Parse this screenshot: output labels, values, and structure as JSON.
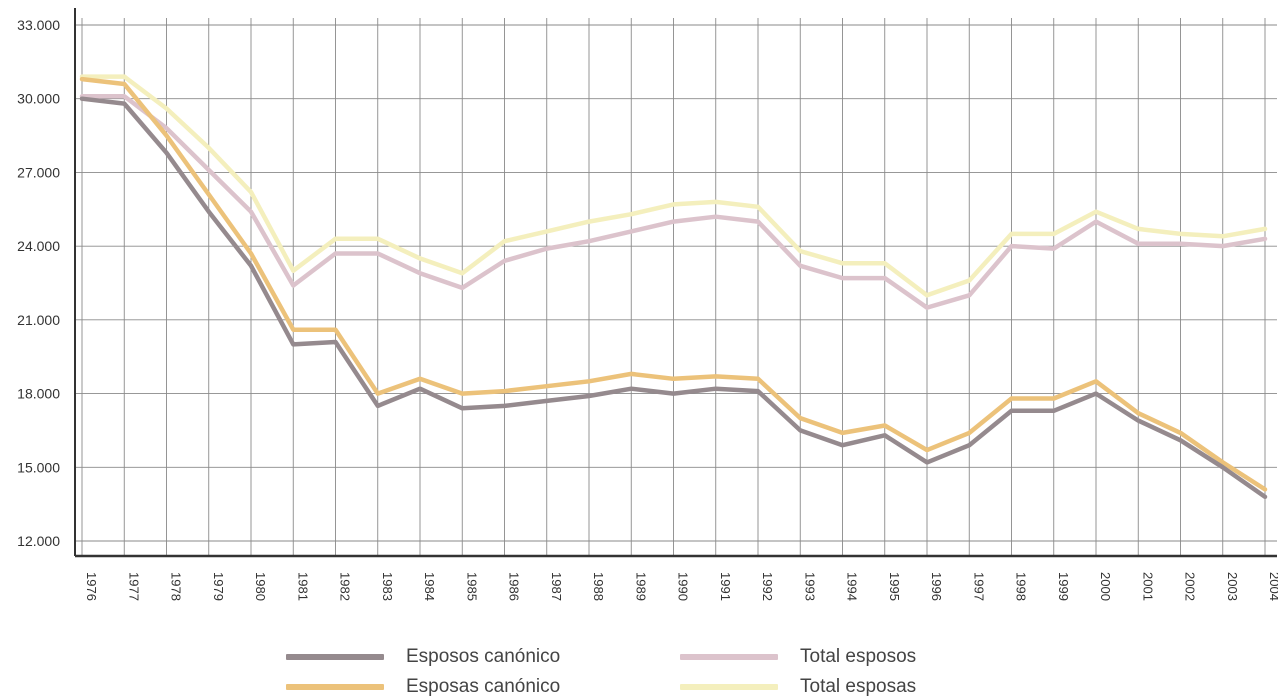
{
  "chart_data": {
    "type": "line",
    "title": "",
    "xlabel": "",
    "ylabel": "",
    "ylim": [
      12000,
      33000
    ],
    "yticks": [
      12000,
      15000,
      18000,
      21000,
      24000,
      27000,
      30000,
      33000
    ],
    "ytick_labels": [
      "12.000",
      "15.000",
      "18.000",
      "21.000",
      "24.000",
      "27.000",
      "30.000",
      "33.000"
    ],
    "grid": true,
    "legend_position": "bottom",
    "x": [
      "1976",
      "1977",
      "1978",
      "1979",
      "1980",
      "1981",
      "1982",
      "1983",
      "1984",
      "1985",
      "1986",
      "1987",
      "1988",
      "1989",
      "1990",
      "1991",
      "1992",
      "1993",
      "1994",
      "1995",
      "1996",
      "1997",
      "1998",
      "1999",
      "2000",
      "2001",
      "2002",
      "2003",
      "2004"
    ],
    "series": [
      {
        "name": "Esposos canónico",
        "color": "#958a8e",
        "values": [
          30000,
          29800,
          27800,
          25400,
          23200,
          20000,
          20100,
          17500,
          18200,
          17400,
          17500,
          17700,
          17900,
          18200,
          18000,
          18200,
          18100,
          16500,
          15900,
          16300,
          15200,
          15900,
          17300,
          17300,
          18000,
          16900,
          16100,
          15000,
          13800
        ]
      },
      {
        "name": "Esposas canónico",
        "color": "#ecc27a",
        "values": [
          30800,
          30600,
          28500,
          26100,
          23700,
          20600,
          20600,
          18000,
          18600,
          18000,
          18100,
          18300,
          18500,
          18800,
          18600,
          18700,
          18600,
          17000,
          16400,
          16700,
          15700,
          16400,
          17800,
          17800,
          18500,
          17200,
          16400,
          15200,
          14100
        ]
      },
      {
        "name": "Total esposos",
        "color": "#dcc3cc",
        "values": [
          30100,
          30100,
          28800,
          27100,
          25400,
          22400,
          23700,
          23700,
          22900,
          22300,
          23400,
          23900,
          24200,
          24600,
          25000,
          25200,
          25000,
          23200,
          22700,
          22700,
          21500,
          22000,
          24000,
          23900,
          25000,
          24100,
          24100,
          24000,
          24300
        ]
      },
      {
        "name": "Total esposas",
        "color": "#f4efbd",
        "values": [
          30900,
          30900,
          29600,
          28000,
          26200,
          23000,
          24300,
          24300,
          23500,
          22900,
          24200,
          24600,
          25000,
          25300,
          25700,
          25800,
          25600,
          23800,
          23300,
          23300,
          22000,
          22600,
          24500,
          24500,
          25400,
          24700,
          24500,
          24400,
          24700
        ]
      }
    ]
  }
}
